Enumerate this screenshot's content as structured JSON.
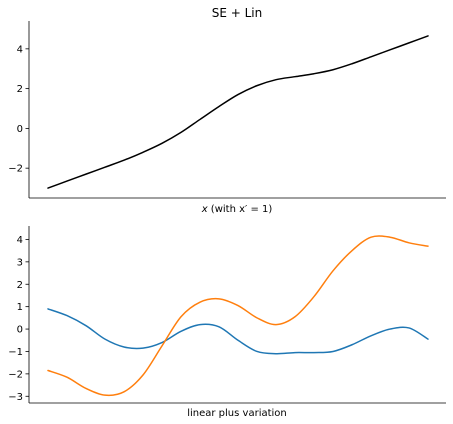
{
  "chart_data": [
    {
      "type": "line",
      "title": "SE + Lin",
      "xlabel_main": "x",
      "xlabel_rest": " (with x′ = 1)",
      "ylabel": "",
      "xlim": [
        0,
        10
      ],
      "ylim": [
        -3.5,
        5.4
      ],
      "yticks": [
        -2,
        0,
        2,
        4
      ],
      "ytick_labels": [
        "−2",
        "0",
        "2",
        "4"
      ],
      "grid": false,
      "series": [
        {
          "color": "#000000",
          "x": [
            0,
            0.5,
            1,
            1.5,
            2,
            2.5,
            3,
            3.5,
            4,
            4.5,
            5,
            5.5,
            6,
            6.5,
            7,
            7.5,
            8,
            8.5,
            9,
            9.5,
            10
          ],
          "y": [
            -3.0,
            -2.65,
            -2.3,
            -1.95,
            -1.6,
            -1.2,
            -0.75,
            -0.2,
            0.45,
            1.1,
            1.7,
            2.15,
            2.45,
            2.6,
            2.75,
            2.95,
            3.25,
            3.6,
            3.95,
            4.3,
            4.65
          ]
        }
      ]
    },
    {
      "type": "line",
      "title": "",
      "xlabel": "linear plus variation",
      "ylabel": "",
      "xlim": [
        0,
        10
      ],
      "ylim": [
        -3.3,
        4.6
      ],
      "yticks": [
        -3,
        -2,
        -1,
        0,
        1,
        2,
        3,
        4
      ],
      "ytick_labels": [
        "−3",
        "−2",
        "−1",
        "0",
        "1",
        "2",
        "3",
        "4"
      ],
      "grid": false,
      "series": [
        {
          "color": "#1f77b4",
          "x": [
            0,
            0.5,
            1,
            1.5,
            2,
            2.5,
            3,
            3.5,
            4,
            4.5,
            5,
            5.5,
            6,
            6.5,
            7,
            7.5,
            8,
            8.5,
            9,
            9.5,
            10
          ],
          "y": [
            0.9,
            0.6,
            0.15,
            -0.45,
            -0.8,
            -0.85,
            -0.6,
            -0.1,
            0.2,
            0.1,
            -0.5,
            -1.0,
            -1.1,
            -1.05,
            -1.05,
            -1.0,
            -0.7,
            -0.3,
            0.0,
            0.05,
            -0.45
          ]
        },
        {
          "color": "#ff7f0e",
          "x": [
            0,
            0.5,
            1,
            1.5,
            2,
            2.5,
            3,
            3.5,
            4,
            4.5,
            5,
            5.5,
            6,
            6.5,
            7,
            7.5,
            8,
            8.5,
            9,
            9.5,
            10
          ],
          "y": [
            -1.85,
            -2.15,
            -2.65,
            -2.95,
            -2.8,
            -2.05,
            -0.75,
            0.55,
            1.2,
            1.35,
            1.05,
            0.5,
            0.2,
            0.55,
            1.45,
            2.6,
            3.5,
            4.1,
            4.1,
            3.85,
            3.7
          ]
        }
      ]
    }
  ]
}
